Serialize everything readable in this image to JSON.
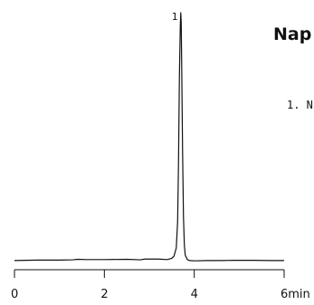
{
  "title": "Nap",
  "legend_entries": [
    "1. N"
  ],
  "chart_data": {
    "type": "line",
    "title": "Nap",
    "xlabel": "",
    "ylabel": "",
    "xlim": [
      0,
      6
    ],
    "ylim": [
      0,
      100
    ],
    "x_unit": "min",
    "x_ticks": [
      0,
      2,
      4,
      6
    ],
    "x_tick_labels": [
      "0",
      "2",
      "4",
      "6min"
    ],
    "grid": false,
    "legend": "right",
    "series": [
      {
        "x": [
          0.0,
          0.5,
          1.0,
          1.3,
          1.4,
          1.6,
          2.0,
          2.5,
          2.8,
          2.9,
          3.2,
          3.4,
          3.5,
          3.55,
          3.6,
          3.63,
          3.65,
          3.67,
          3.69,
          3.7,
          3.71,
          3.72,
          3.74,
          3.76,
          3.78,
          3.8,
          3.85,
          3.9,
          4.0,
          4.3,
          4.6,
          4.9,
          5.3,
          5.7,
          6.0
        ],
        "y": [
          0.4,
          0.6,
          0.6,
          0.7,
          0.9,
          0.8,
          0.8,
          0.9,
          0.7,
          1.0,
          1.0,
          0.8,
          1.3,
          2.2,
          5.5,
          16.0,
          40.0,
          75.0,
          95.0,
          100.0,
          96.0,
          80.0,
          45.0,
          18.0,
          6.5,
          2.5,
          0.7,
          0.4,
          0.3,
          0.4,
          0.4,
          0.5,
          0.5,
          0.4,
          0.4
        ]
      }
    ],
    "annotations": [
      {
        "text": "1",
        "x": 3.7,
        "y": 100
      }
    ]
  }
}
